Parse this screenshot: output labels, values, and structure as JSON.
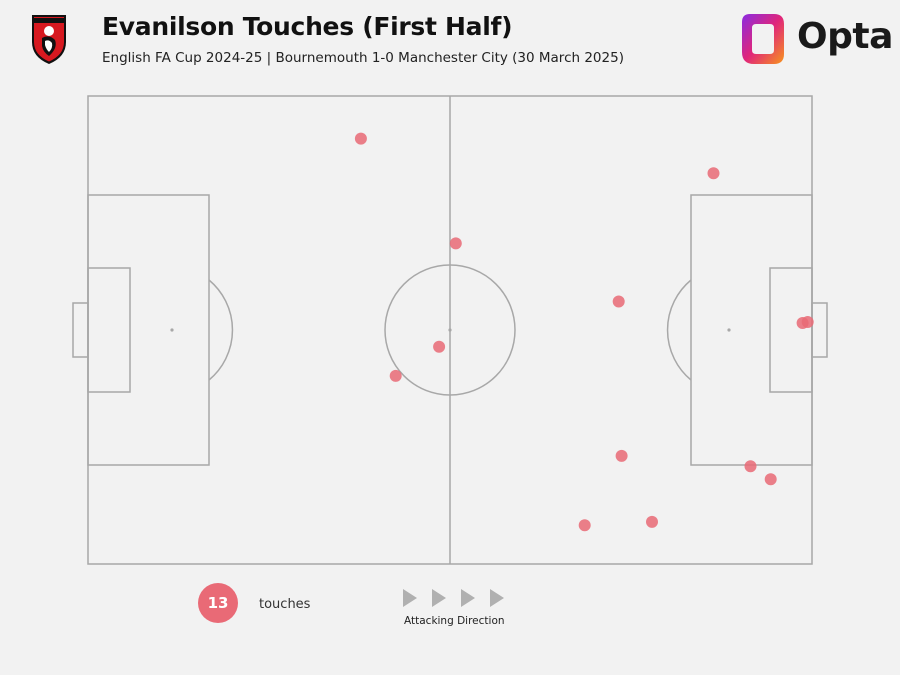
{
  "header": {
    "title": "Evanilson Touches (First Half)",
    "subtitle": "English FA Cup 2024-25 | Bournemouth 1-0 Manchester City (30 March 2025)",
    "brand": "Opta",
    "club_crest_icon": "afc-bournemouth-crest-icon"
  },
  "colors": {
    "touch_marker": "#e96a76",
    "pitch_lines": "#a8a8a8",
    "background": "#f2f2f2"
  },
  "legend": {
    "count": "13",
    "count_label": "touches",
    "direction_label": "Attacking Direction"
  },
  "chart_data": {
    "type": "scatter",
    "title": "Evanilson Touches (First Half)",
    "pitch": "full pitch, horizontal, attacking left-to-right",
    "xlim": [
      0,
      100
    ],
    "ylim": [
      0,
      100
    ],
    "points": [
      {
        "x": 37.7,
        "y": 90.9
      },
      {
        "x": 50.8,
        "y": 68.5
      },
      {
        "x": 73.3,
        "y": 56.1
      },
      {
        "x": 48.5,
        "y": 46.4
      },
      {
        "x": 42.5,
        "y": 40.2
      },
      {
        "x": 86.4,
        "y": 83.5
      },
      {
        "x": 98.7,
        "y": 51.5
      },
      {
        "x": 99.4,
        "y": 51.7
      },
      {
        "x": 73.7,
        "y": 23.1
      },
      {
        "x": 91.5,
        "y": 20.9
      },
      {
        "x": 94.3,
        "y": 18.1
      },
      {
        "x": 68.6,
        "y": 8.3
      },
      {
        "x": 77.9,
        "y": 9.0
      }
    ]
  }
}
